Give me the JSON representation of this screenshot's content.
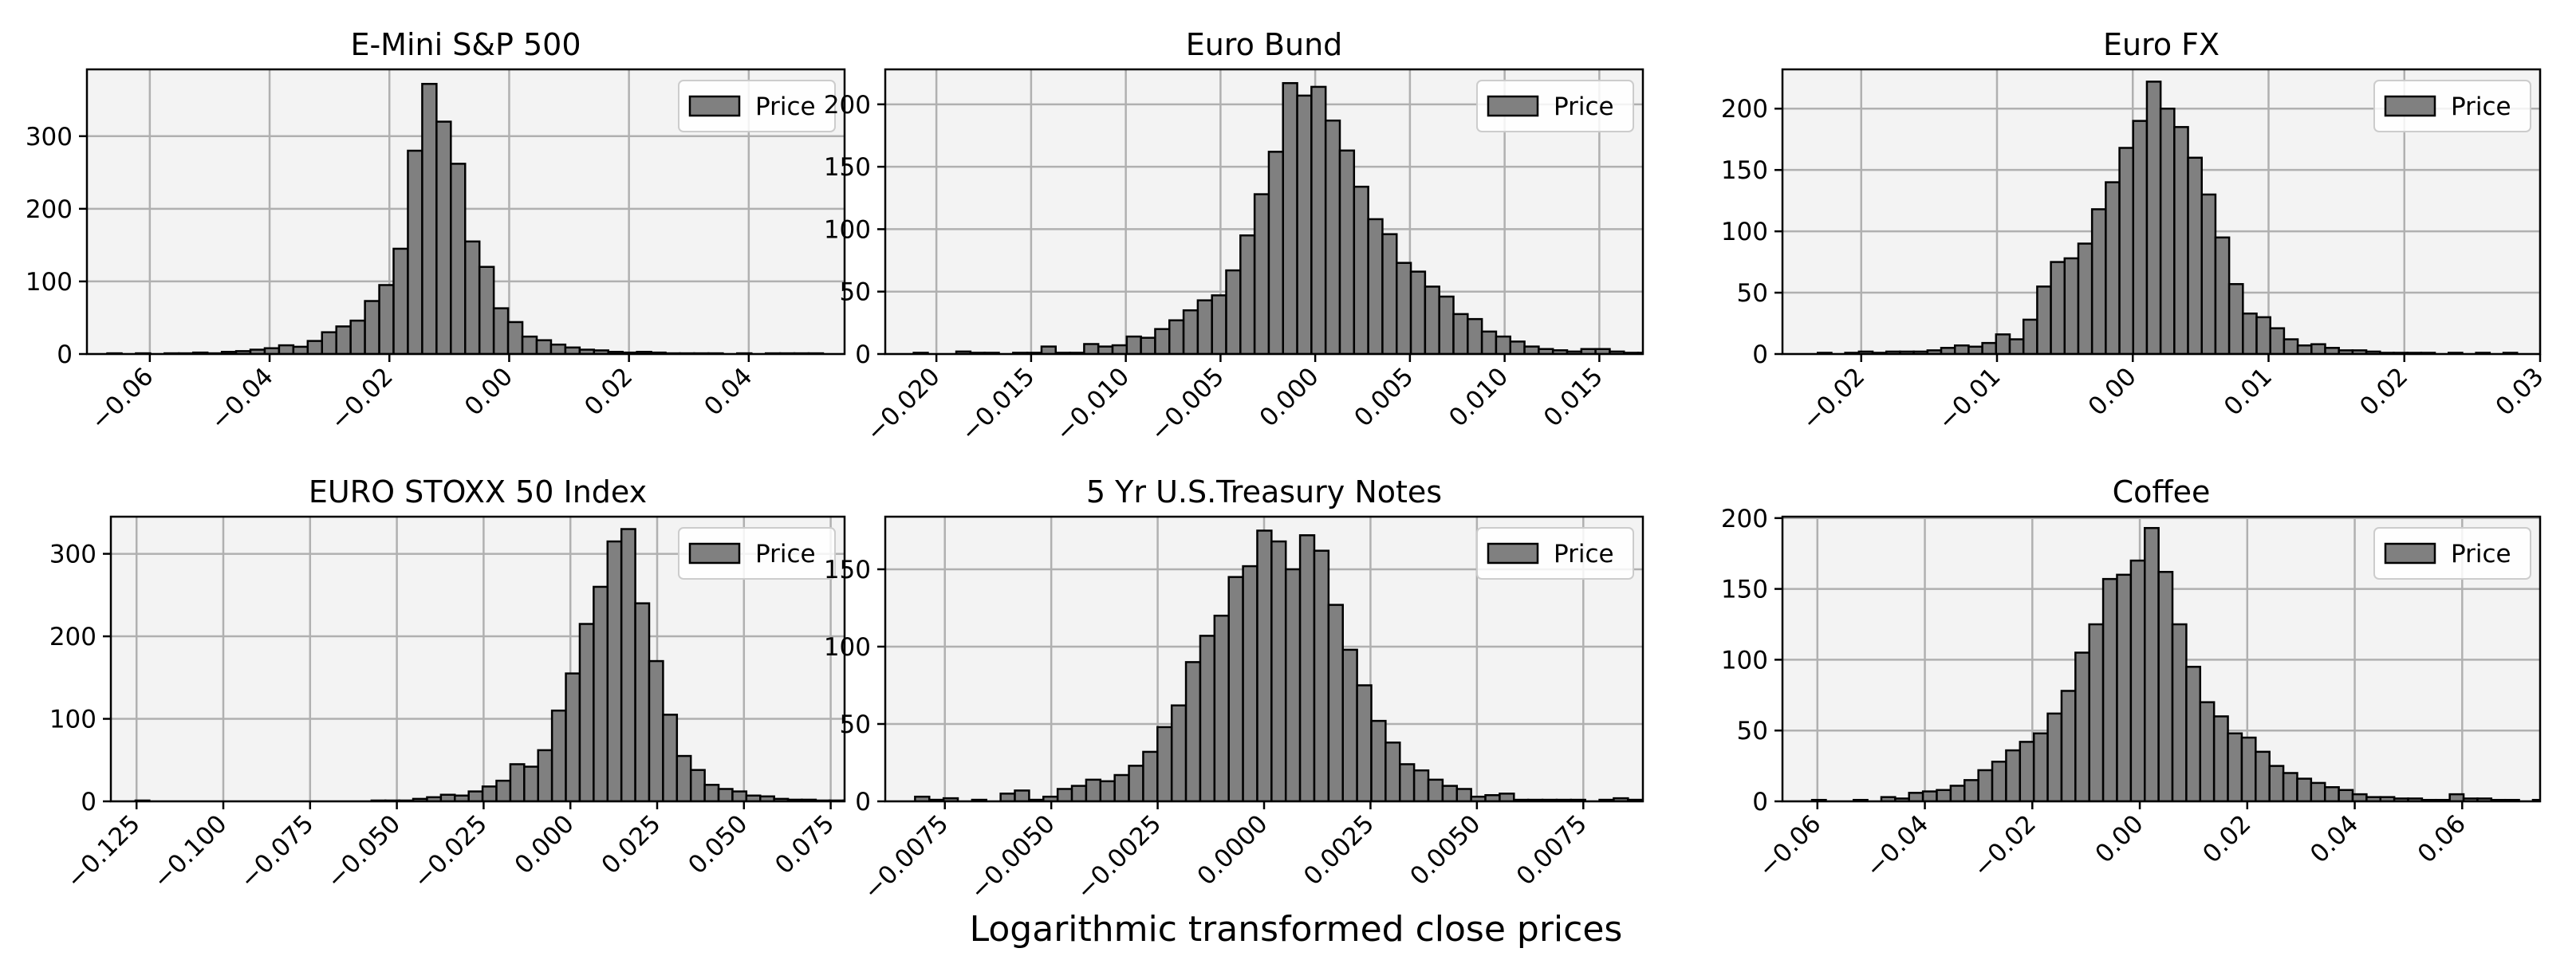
{
  "figure": {
    "xlabel": "Logarithmic transformed close prices"
  },
  "colors": {
    "bar_fill": "#808080",
    "bar_edge": "#000000",
    "axes_bg": "#f3f3f3",
    "grid": "#b0b0b0"
  },
  "chart_data": [
    {
      "type": "bar",
      "title": "E-Mini S&P 500",
      "legend": {
        "label": "Price",
        "placement": "top-right"
      },
      "grid": true,
      "xlim": [
        -0.0705,
        0.056
      ],
      "ylim": [
        0,
        392
      ],
      "xticks": [
        -0.06,
        -0.04,
        -0.02,
        0.0,
        0.02,
        0.04
      ],
      "xtick_labels": [
        "−0.06",
        "−0.04",
        "−0.02",
        "0.00",
        "0.02",
        "0.04"
      ],
      "yticks": [
        0,
        100,
        200,
        300
      ],
      "ytick_labels": [
        "0",
        "100",
        "200",
        "300"
      ],
      "bin_start": -0.0671,
      "bin_width": 0.00239,
      "values": [
        1,
        0,
        1,
        0,
        1,
        1,
        2,
        1,
        3,
        4,
        6,
        8,
        12,
        10,
        18,
        30,
        38,
        46,
        73,
        95,
        145,
        280,
        372,
        320,
        262,
        155,
        120,
        63,
        44,
        24,
        19,
        13,
        9,
        6,
        5,
        3,
        2,
        3,
        2,
        1,
        1,
        1,
        1,
        0,
        1,
        0,
        1,
        1,
        1,
        1
      ]
    },
    {
      "type": "bar",
      "title": "Euro Bund",
      "legend": {
        "label": "Price",
        "placement": "top-right"
      },
      "grid": true,
      "xlim": [
        -0.0227,
        0.0173
      ],
      "ylim": [
        0,
        228
      ],
      "xticks": [
        -0.02,
        -0.015,
        -0.01,
        -0.005,
        0.0,
        0.005,
        0.01,
        0.015
      ],
      "xtick_labels": [
        "−0.020",
        "−0.015",
        "−0.010",
        "−0.005",
        "0.000",
        "0.005",
        "0.010",
        "0.015"
      ],
      "yticks": [
        0,
        50,
        100,
        150,
        200
      ],
      "ytick_labels": [
        "0",
        "50",
        "100",
        "150",
        "200"
      ],
      "bin_start": -0.0212,
      "bin_width": 0.00075,
      "values": [
        1,
        0,
        0,
        2,
        1,
        1,
        0,
        1,
        1,
        6,
        1,
        1,
        8,
        6,
        7,
        14,
        13,
        20,
        27,
        35,
        43,
        47,
        67,
        95,
        128,
        162,
        217,
        207,
        214,
        187,
        163,
        134,
        108,
        96,
        73,
        66,
        54,
        46,
        32,
        28,
        18,
        14,
        10,
        6,
        4,
        3,
        2,
        4,
        4,
        2,
        1,
        1,
        2
      ]
    },
    {
      "type": "bar",
      "title": "Euro FX",
      "legend": {
        "label": "Price",
        "placement": "top-right"
      },
      "grid": true,
      "xlim": [
        -0.0258,
        0.03
      ],
      "ylim": [
        0,
        232
      ],
      "xticks": [
        -0.02,
        -0.01,
        0.0,
        0.01,
        0.02,
        0.03
      ],
      "xtick_labels": [
        "−0.02",
        "−0.01",
        "0.00",
        "0.01",
        "0.02",
        "0.03"
      ],
      "yticks": [
        0,
        50,
        100,
        150,
        200
      ],
      "ytick_labels": [
        "0",
        "50",
        "100",
        "150",
        "200"
      ],
      "bin_start": -0.0232,
      "bin_width": 0.00101,
      "values": [
        1,
        0,
        1,
        2,
        1,
        2,
        2,
        2,
        3,
        5,
        7,
        6,
        9,
        16,
        12,
        28,
        55,
        75,
        78,
        90,
        118,
        140,
        168,
        190,
        222,
        200,
        185,
        160,
        130,
        95,
        57,
        33,
        30,
        21,
        12,
        7,
        8,
        5,
        3,
        3,
        2,
        1,
        1,
        1,
        1,
        0,
        1,
        0,
        1,
        0,
        1
      ]
    },
    {
      "type": "bar",
      "title": "EURO STOXX 50 Index",
      "legend": {
        "label": "Price",
        "placement": "top-right"
      },
      "grid": true,
      "xlim": [
        -0.1324,
        0.079
      ],
      "ylim": [
        0,
        345
      ],
      "xticks": [
        -0.125,
        -0.1,
        -0.075,
        -0.05,
        -0.025,
        0.0,
        0.025,
        0.05,
        0.075
      ],
      "xtick_labels": [
        "−0.125",
        "−0.100",
        "−0.075",
        "−0.050",
        "−0.025",
        "0.000",
        "0.025",
        "0.050",
        "0.075"
      ],
      "yticks": [
        0,
        100,
        200,
        300
      ],
      "ytick_labels": [
        "0",
        "100",
        "200",
        "300"
      ],
      "bin_start": -0.1253,
      "bin_width": 0.004,
      "values": [
        1,
        0,
        0,
        0,
        0,
        0,
        0,
        0,
        0,
        0,
        0,
        0,
        0,
        0,
        0,
        0,
        0,
        1,
        1,
        1,
        3,
        5,
        8,
        7,
        12,
        18,
        25,
        45,
        42,
        62,
        110,
        155,
        215,
        260,
        315,
        330,
        240,
        170,
        105,
        55,
        38,
        20,
        15,
        12,
        7,
        6,
        3,
        2,
        2,
        1,
        1,
        1,
        1
      ]
    },
    {
      "type": "bar",
      "title": "5 Yr U.S.Treasury Notes",
      "legend": {
        "label": "Price",
        "placement": "top-right"
      },
      "grid": true,
      "xlim": [
        -0.0089,
        0.0089
      ],
      "ylim": [
        0,
        184
      ],
      "xticks": [
        -0.0075,
        -0.005,
        -0.0025,
        0.0,
        0.0025,
        0.005,
        0.0075
      ],
      "xtick_labels": [
        "−0.0075",
        "−0.0050",
        "−0.0025",
        "0.0000",
        "0.0025",
        "0.0050",
        "0.0075"
      ],
      "yticks": [
        0,
        50,
        100,
        150
      ],
      "ytick_labels": [
        "0",
        "50",
        "100",
        "150"
      ],
      "bin_start": -0.0082,
      "bin_width": 0.000335,
      "values": [
        3,
        1,
        2,
        0,
        1,
        0,
        5,
        7,
        1,
        3,
        8,
        10,
        14,
        13,
        17,
        23,
        32,
        48,
        62,
        90,
        107,
        120,
        145,
        152,
        175,
        168,
        150,
        172,
        162,
        127,
        98,
        75,
        52,
        38,
        24,
        20,
        14,
        10,
        8,
        3,
        4,
        5,
        1,
        1,
        1,
        1,
        1,
        0,
        1,
        2,
        1
      ]
    },
    {
      "type": "bar",
      "title": "Coffee",
      "legend": {
        "label": "Price",
        "placement": "top-right"
      },
      "grid": true,
      "xlim": [
        -0.0665,
        0.0745
      ],
      "ylim": [
        0,
        201
      ],
      "xticks": [
        -0.06,
        -0.04,
        -0.02,
        0.0,
        0.02,
        0.04,
        0.06
      ],
      "xtick_labels": [
        "−0.06",
        "−0.04",
        "−0.02",
        "0.00",
        "0.02",
        "0.04",
        "0.06"
      ],
      "yticks": [
        0,
        50,
        100,
        150,
        200
      ],
      "ytick_labels": [
        "0",
        "50",
        "100",
        "150",
        "200"
      ],
      "bin_start": -0.061,
      "bin_width": 0.00258,
      "values": [
        1,
        0,
        0,
        1,
        0,
        3,
        2,
        6,
        7,
        8,
        11,
        15,
        22,
        28,
        36,
        42,
        48,
        62,
        78,
        105,
        125,
        157,
        160,
        170,
        193,
        162,
        125,
        95,
        70,
        60,
        48,
        45,
        35,
        25,
        20,
        16,
        13,
        10,
        8,
        5,
        3,
        3,
        2,
        2,
        1,
        1,
        5,
        2,
        2,
        1,
        1,
        0,
        1
      ]
    }
  ]
}
